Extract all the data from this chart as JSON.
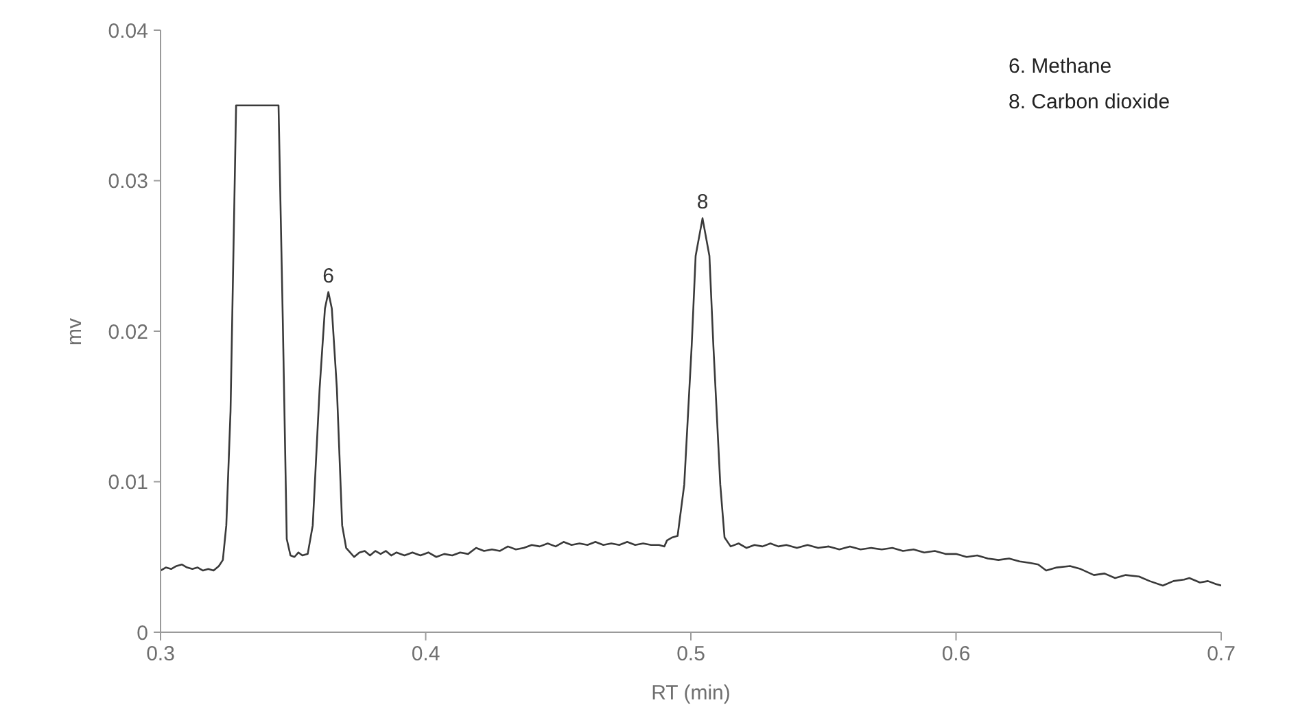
{
  "chart_data": {
    "type": "line",
    "xlabel": "RT (min)",
    "ylabel": "mv",
    "x": [
      0.3,
      0.302,
      0.304,
      0.306,
      0.308,
      0.31,
      0.312,
      0.314,
      0.316,
      0.318,
      0.32,
      0.322,
      0.3235,
      0.3248,
      0.3264,
      0.3285,
      0.3445,
      0.3461,
      0.3476,
      0.349,
      0.3505,
      0.352,
      0.3535,
      0.3555,
      0.3574,
      0.36,
      0.362,
      0.3633,
      0.3646,
      0.3665,
      0.3685,
      0.37,
      0.3715,
      0.373,
      0.375,
      0.377,
      0.379,
      0.381,
      0.383,
      0.385,
      0.387,
      0.389,
      0.392,
      0.395,
      0.398,
      0.401,
      0.404,
      0.407,
      0.41,
      0.413,
      0.416,
      0.419,
      0.422,
      0.425,
      0.428,
      0.431,
      0.434,
      0.437,
      0.44,
      0.443,
      0.446,
      0.449,
      0.452,
      0.455,
      0.458,
      0.461,
      0.464,
      0.467,
      0.47,
      0.473,
      0.476,
      0.479,
      0.482,
      0.485,
      0.488,
      0.49,
      0.491,
      0.493,
      0.495,
      0.4975,
      0.5003,
      0.5018,
      0.5044,
      0.507,
      0.5085,
      0.5111,
      0.5127,
      0.515,
      0.518,
      0.521,
      0.524,
      0.527,
      0.53,
      0.533,
      0.536,
      0.54,
      0.544,
      0.548,
      0.552,
      0.556,
      0.56,
      0.564,
      0.568,
      0.572,
      0.576,
      0.58,
      0.584,
      0.588,
      0.592,
      0.596,
      0.6,
      0.604,
      0.608,
      0.612,
      0.616,
      0.62,
      0.624,
      0.628,
      0.631,
      0.634,
      0.638,
      0.643,
      0.647,
      0.652,
      0.656,
      0.66,
      0.664,
      0.669,
      0.673,
      0.678,
      0.682,
      0.686,
      0.688,
      0.692,
      0.695,
      0.698,
      0.7
    ],
    "values": [
      0.0041,
      0.0043,
      0.0042,
      0.0044,
      0.0045,
      0.0043,
      0.0042,
      0.0043,
      0.0041,
      0.0042,
      0.0041,
      0.0044,
      0.0048,
      0.0071,
      0.0147,
      0.035,
      0.035,
      0.0208,
      0.0062,
      0.0051,
      0.005,
      0.0053,
      0.0051,
      0.0052,
      0.0071,
      0.0162,
      0.0215,
      0.0226,
      0.0215,
      0.0162,
      0.0071,
      0.0056,
      0.0053,
      0.005,
      0.0053,
      0.0054,
      0.0051,
      0.0054,
      0.0052,
      0.0054,
      0.0051,
      0.0053,
      0.0051,
      0.0053,
      0.0051,
      0.0053,
      0.005,
      0.0052,
      0.0051,
      0.0053,
      0.0052,
      0.0056,
      0.0054,
      0.0055,
      0.0054,
      0.0057,
      0.0055,
      0.0056,
      0.0058,
      0.0057,
      0.0059,
      0.0057,
      0.006,
      0.0058,
      0.0059,
      0.0058,
      0.006,
      0.0058,
      0.0059,
      0.0058,
      0.006,
      0.0058,
      0.0059,
      0.0058,
      0.0058,
      0.0057,
      0.0061,
      0.0063,
      0.0064,
      0.0098,
      0.019,
      0.025,
      0.0275,
      0.025,
      0.019,
      0.0098,
      0.0063,
      0.0057,
      0.0059,
      0.0056,
      0.0058,
      0.0057,
      0.0059,
      0.0057,
      0.0058,
      0.0056,
      0.0058,
      0.0056,
      0.0057,
      0.0055,
      0.0057,
      0.0055,
      0.0056,
      0.0055,
      0.0056,
      0.0054,
      0.0055,
      0.0053,
      0.0054,
      0.0052,
      0.0052,
      0.005,
      0.0051,
      0.0049,
      0.0048,
      0.0049,
      0.0047,
      0.0046,
      0.0045,
      0.0041,
      0.0043,
      0.0044,
      0.0042,
      0.0038,
      0.0039,
      0.0036,
      0.0038,
      0.0037,
      0.0034,
      0.0031,
      0.0034,
      0.0035,
      0.0036,
      0.0033,
      0.0034,
      0.0032,
      0.0031
    ],
    "color": "#3a3a3a",
    "xlim": [
      0.3,
      0.7
    ],
    "xticks": [
      0.3,
      0.4,
      0.5,
      0.6,
      0.7
    ],
    "ylim": [
      0,
      0.04
    ],
    "yticks": [
      0,
      0.01,
      0.02,
      0.03,
      0.04
    ],
    "annotations": [
      {
        "text": "6",
        "x": 0.3633,
        "y": 0.0226
      },
      {
        "text": "8",
        "x": 0.5044,
        "y": 0.0275
      },
      "6. Methane",
      "8. Carbon dioxide"
    ]
  }
}
